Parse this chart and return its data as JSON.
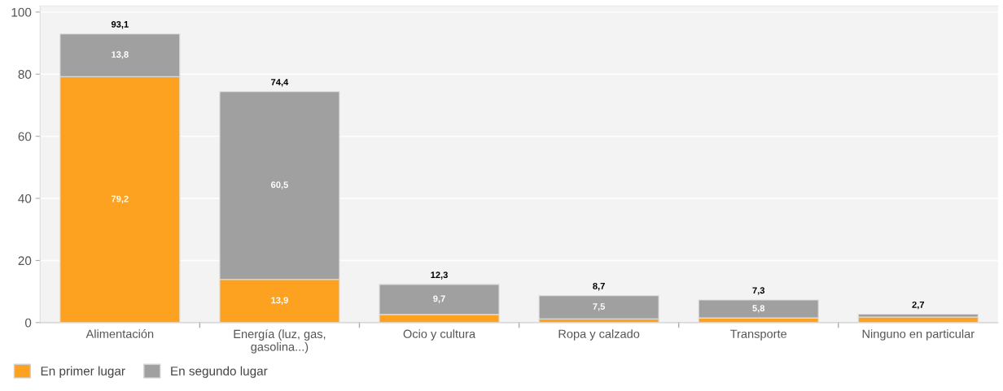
{
  "chart_data": {
    "type": "bar",
    "stacked": true,
    "categories": [
      "Alimentación",
      "Energía (luz, gas,\ngasolina...)",
      "Ocio y cultura",
      "Ropa y calzado",
      "Transporte",
      "Ninguno en particular"
    ],
    "series": [
      {
        "name": "En primer lugar",
        "color": "#fca220",
        "values": [
          79.2,
          13.9,
          2.6,
          1.2,
          1.5,
          1.8
        ],
        "value_labels": [
          "79,2",
          "13,9",
          null,
          null,
          null,
          null
        ]
      },
      {
        "name": "En segundo lugar",
        "color": "#a0a0a0",
        "values": [
          13.8,
          60.5,
          9.7,
          7.5,
          5.8,
          0.9
        ],
        "value_labels": [
          "13,8",
          "60,5",
          "9,7",
          "7,5",
          "5,8",
          null
        ]
      }
    ],
    "totals": [
      "93,1",
      "74,4",
      "12,3",
      "8,7",
      "7,3",
      "2,7"
    ],
    "ylim": [
      0,
      102
    ],
    "yticks": [
      0,
      20,
      40,
      60,
      80,
      100
    ],
    "grid": "y",
    "legend": "bottom left"
  }
}
